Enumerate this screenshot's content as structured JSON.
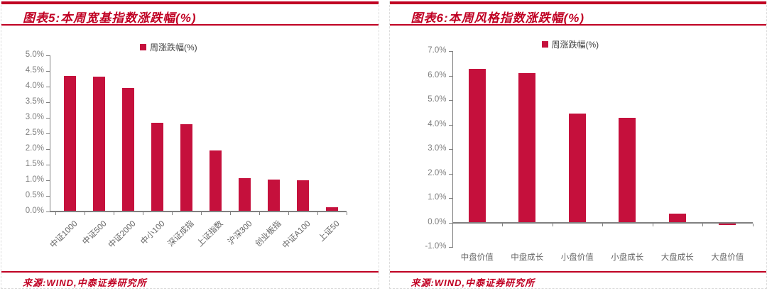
{
  "chart_data": [
    {
      "type": "bar",
      "figure_label": "图表5",
      "title": "图表5:本周宽基指数涨跌幅(%)",
      "legend": [
        "周涨跌幅(%)"
      ],
      "categories": [
        "中证1000",
        "中证500",
        "中证2000",
        "中小100",
        "深证成指",
        "上证指数",
        "沪深300",
        "创业板指",
        "中证A100",
        "上证50"
      ],
      "values": [
        4.34,
        4.31,
        3.96,
        2.85,
        2.8,
        1.96,
        1.07,
        1.03,
        0.99,
        0.13
      ],
      "ylim": [
        0,
        5
      ],
      "ystep": 0.5,
      "xlabel": "",
      "ylabel": "",
      "grid": false,
      "legend_position": "top",
      "x_label_rotation": -45,
      "bar_color": "#C5103C",
      "source": "来源:WIND,中泰证券研究所"
    },
    {
      "type": "bar",
      "figure_label": "图表6",
      "title": "图表6:本周风格指数涨跌幅(%)",
      "legend": [
        "周涨跌幅(%)"
      ],
      "categories": [
        "中盘价值",
        "中盘成长",
        "小盘价值",
        "小盘成长",
        "大盘成长",
        "大盘价值"
      ],
      "values": [
        6.28,
        6.1,
        4.45,
        4.28,
        0.35,
        -0.1
      ],
      "ylim": [
        -1,
        7
      ],
      "ystep": 1,
      "xlabel": "",
      "ylabel": "",
      "grid": false,
      "legend_position": "top",
      "x_label_rotation": 0,
      "bar_color": "#C5103C",
      "source": "来源:WIND,中泰证券研究所"
    }
  ],
  "colors": {
    "accent_red": "#C00023",
    "bar_red": "#C5103C",
    "axis_gray": "#808080",
    "label_gray": "#7F7F7F",
    "legend_text": "#404040",
    "panel_border": "#DCDCDC"
  }
}
